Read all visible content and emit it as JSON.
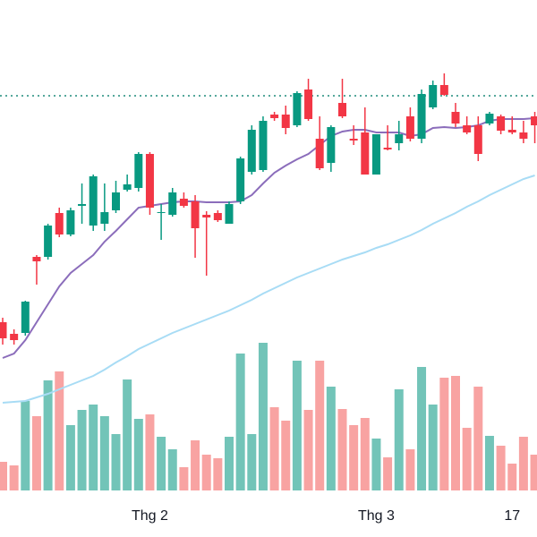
{
  "chart_data": {
    "type": "candlestick",
    "categories": [
      null,
      null,
      null,
      null,
      null,
      null,
      null,
      null,
      null,
      null,
      null,
      null,
      null,
      "Thg 2",
      null,
      null,
      null,
      null,
      null,
      null,
      null,
      null,
      null,
      null,
      null,
      null,
      null,
      null,
      null,
      null,
      null,
      null,
      null,
      "Thg 3",
      null,
      null,
      null,
      null,
      null,
      null,
      null,
      null,
      null,
      null,
      null,
      "17",
      null,
      null
    ],
    "open": [
      240,
      227,
      228,
      313,
      313,
      362,
      338,
      370,
      348,
      350,
      365,
      388,
      390,
      428,
      362,
      360,
      378,
      375,
      360,
      362,
      350,
      375,
      408,
      410,
      472,
      472,
      460,
      500,
      445,
      418,
      485,
      445,
      452,
      405,
      435,
      440,
      470,
      445,
      480,
      505,
      475,
      460,
      460,
      462,
      470,
      455,
      452,
      470
    ],
    "high": [
      245,
      232,
      264,
      315,
      350,
      368,
      368,
      395,
      405,
      395,
      398,
      405,
      430,
      430,
      372,
      390,
      385,
      382,
      364,
      365,
      375,
      425,
      460,
      470,
      475,
      482,
      498,
      512,
      470,
      460,
      512,
      460,
      480,
      450,
      460,
      465,
      480,
      500,
      510,
      518,
      485,
      470,
      470,
      475,
      472,
      470,
      465,
      475
    ],
    "low": [
      215,
      215,
      225,
      282,
      310,
      335,
      336,
      350,
      342,
      342,
      362,
      386,
      386,
      360,
      332,
      358,
      368,
      312,
      292,
      352,
      350,
      372,
      405,
      408,
      465,
      450,
      458,
      465,
      410,
      408,
      468,
      438,
      405,
      405,
      432,
      432,
      442,
      440,
      478,
      493,
      458,
      450,
      420,
      460,
      450,
      450,
      440,
      440
    ],
    "close": [
      222,
      220,
      263,
      308,
      348,
      338,
      365,
      372,
      403,
      363,
      385,
      394,
      428,
      368,
      363,
      385,
      370,
      345,
      357,
      354,
      372,
      423,
      455,
      465,
      468,
      457,
      496,
      467,
      412,
      458,
      470,
      443,
      405,
      450,
      433,
      450,
      445,
      495,
      505,
      494,
      462,
      452,
      428,
      473,
      454,
      452,
      445,
      460
    ],
    "volume": [
      32,
      28,
      100,
      83,
      123,
      133,
      73,
      90,
      96,
      83,
      63,
      124,
      80,
      85,
      60,
      46,
      26,
      56,
      40,
      36,
      60,
      153,
      63,
      165,
      93,
      78,
      145,
      90,
      145,
      116,
      91,
      73,
      81,
      58,
      37,
      113,
      46,
      138,
      96,
      126,
      128,
      70,
      116,
      61,
      50,
      30,
      60,
      40
    ],
    "series": [
      {
        "color": "#8b6dbb",
        "values": [
          200,
          205,
          220,
          240,
          260,
          280,
          295,
          305,
          315,
          330,
          342,
          355,
          368,
          370,
          372,
          374,
          375,
          375,
          374,
          374,
          374,
          375,
          382,
          395,
          407,
          415,
          422,
          428,
          438,
          448,
          453,
          455,
          455,
          452,
          452,
          452,
          448,
          450,
          457,
          458,
          457,
          458,
          460,
          465,
          467,
          467,
          467,
          468
        ]
      },
      {
        "color": "#a8dcf5",
        "values": [
          150,
          151,
          152,
          156,
          160,
          165,
          170,
          175,
          180,
          187,
          195,
          202,
          210,
          216,
          222,
          228,
          233,
          238,
          243,
          248,
          253,
          259,
          265,
          272,
          278,
          284,
          290,
          295,
          300,
          305,
          310,
          314,
          318,
          323,
          327,
          332,
          337,
          343,
          350,
          356,
          362,
          369,
          375,
          382,
          388,
          394,
          400,
          404
        ]
      }
    ],
    "price_line": 493,
    "price_line_color": "#1e8c7c",
    "up_color": "#089981",
    "down_color": "#f23645",
    "volume_up_color": "#72c4b8",
    "volume_down_color": "#f8a3a2",
    "ylim": [
      0,
      600
    ],
    "y2lim": [
      0,
      548
    ]
  }
}
